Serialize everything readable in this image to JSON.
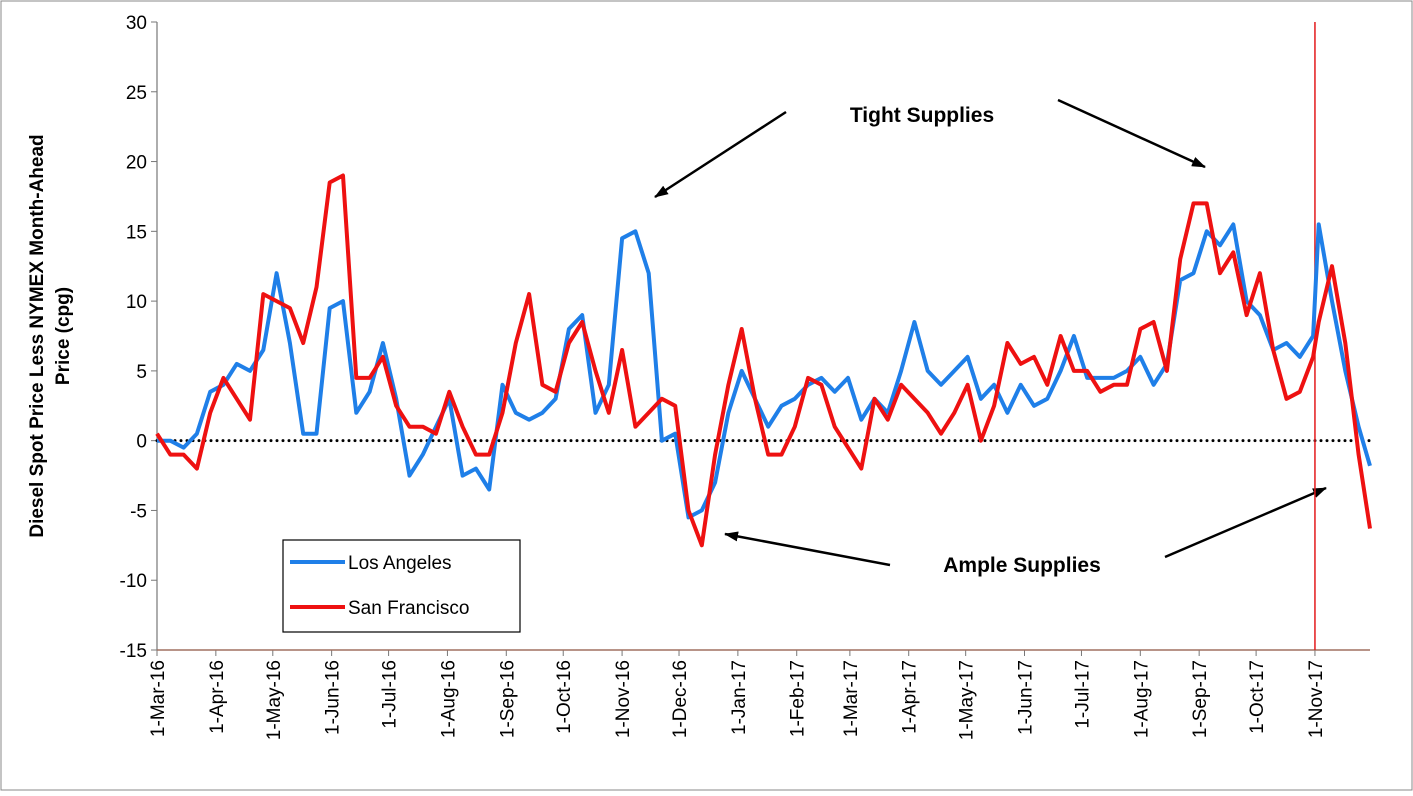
{
  "chart_data": {
    "type": "line",
    "ylabel": [
      "Diesel Spot Price Less NYMEX Month-Ahead",
      "Price (cpg)"
    ],
    "x": [
      "1-Mar-16",
      "8-Mar-16",
      "15-Mar-16",
      "22-Mar-16",
      "29-Mar-16",
      "5-Apr-16",
      "12-Apr-16",
      "19-Apr-16",
      "26-Apr-16",
      "3-May-16",
      "10-May-16",
      "17-May-16",
      "24-May-16",
      "31-May-16",
      "7-Jun-16",
      "14-Jun-16",
      "21-Jun-16",
      "28-Jun-16",
      "5-Jul-16",
      "12-Jul-16",
      "19-Jul-16",
      "26-Jul-16",
      "2-Aug-16",
      "9-Aug-16",
      "16-Aug-16",
      "23-Aug-16",
      "30-Aug-16",
      "6-Sep-16",
      "13-Sep-16",
      "20-Sep-16",
      "27-Sep-16",
      "4-Oct-16",
      "11-Oct-16",
      "18-Oct-16",
      "25-Oct-16",
      "1-Nov-16",
      "8-Nov-16",
      "15-Nov-16",
      "22-Nov-16",
      "29-Nov-16",
      "6-Dec-16",
      "13-Dec-16",
      "20-Dec-16",
      "27-Dec-16",
      "3-Jan-17",
      "10-Jan-17",
      "17-Jan-17",
      "24-Jan-17",
      "31-Jan-17",
      "7-Feb-17",
      "14-Feb-17",
      "21-Feb-17",
      "28-Feb-17",
      "7-Mar-17",
      "14-Mar-17",
      "21-Mar-17",
      "28-Mar-17",
      "4-Apr-17",
      "11-Apr-17",
      "18-Apr-17",
      "25-Apr-17",
      "2-May-17",
      "9-May-17",
      "16-May-17",
      "23-May-17",
      "30-May-17",
      "6-Jun-17",
      "13-Jun-17",
      "20-Jun-17",
      "27-Jun-17",
      "4-Jul-17",
      "11-Jul-17",
      "18-Jul-17",
      "25-Jul-17",
      "1-Aug-17",
      "8-Aug-17",
      "15-Aug-17",
      "22-Aug-17",
      "29-Aug-17",
      "5-Sep-17",
      "12-Sep-17",
      "19-Sep-17",
      "26-Sep-17",
      "3-Oct-17",
      "10-Oct-17",
      "17-Oct-17",
      "24-Oct-17",
      "31-Oct-17",
      "3-Nov-17",
      "10-Nov-17",
      "17-Nov-17",
      "24-Nov-17",
      "30-Nov-17"
    ],
    "series": [
      {
        "name": "Los Angeles",
        "color": "#1f7fe8",
        "values": [
          0,
          0,
          -0.5,
          0.5,
          3.5,
          4,
          5.5,
          5,
          6.5,
          12,
          7,
          0.5,
          0.5,
          9.5,
          10,
          2,
          3.5,
          7,
          3,
          -2.5,
          -1,
          1,
          3,
          -2.5,
          -2,
          -3.5,
          4,
          2,
          1.5,
          2,
          3,
          8,
          9,
          2,
          4,
          14.5,
          15,
          12,
          0,
          0.5,
          -5.5,
          -5,
          -3,
          2,
          5,
          3,
          1,
          2.5,
          3,
          4,
          4.5,
          3.5,
          4.5,
          1.5,
          3,
          2,
          5,
          8.5,
          5,
          4,
          5,
          6,
          3,
          4,
          2,
          4,
          2.5,
          3,
          5,
          7.5,
          4.5,
          4.5,
          4.5,
          5,
          6,
          4,
          5.5,
          11.5,
          12,
          15,
          14,
          15.5,
          10,
          9,
          6.5,
          7,
          6,
          7.5,
          15.5,
          10,
          5,
          1,
          -1.8
        ]
      },
      {
        "name": "San Francisco",
        "color": "#ee1111",
        "values": [
          0.5,
          -1,
          -1,
          -2,
          2,
          4.5,
          3,
          1.5,
          10.5,
          10,
          9.5,
          7,
          11,
          18.5,
          19,
          4.5,
          4.5,
          6,
          2.5,
          1,
          1,
          0.5,
          3.5,
          1,
          -1,
          -1,
          2,
          7,
          10.5,
          4,
          3.5,
          7,
          8.5,
          5,
          2,
          6.5,
          1,
          2,
          3,
          2.5,
          -5,
          -7.5,
          -1,
          4,
          8,
          3,
          -1,
          -1,
          1,
          4.5,
          4,
          1,
          -0.5,
          -2,
          3,
          1.5,
          4,
          3,
          2,
          0.5,
          2,
          4,
          0,
          2.5,
          7,
          5.5,
          6,
          4,
          7.5,
          5,
          5,
          3.5,
          4,
          4,
          8,
          8.5,
          5,
          13,
          17,
          17,
          12,
          13.5,
          9,
          12,
          6.5,
          3,
          3.5,
          6,
          8.5,
          12.5,
          7,
          -1,
          -6.3
        ]
      }
    ],
    "xlim": [
      "1-Mar-16",
      "30-Nov-17"
    ],
    "xticks": [
      "1-Mar-16",
      "1-Apr-16",
      "1-May-16",
      "1-Jun-16",
      "1-Jul-16",
      "1-Aug-16",
      "1-Sep-16",
      "1-Oct-16",
      "1-Nov-16",
      "1-Dec-16",
      "1-Jan-17",
      "1-Feb-17",
      "1-Mar-17",
      "1-Apr-17",
      "1-May-17",
      "1-Jun-17",
      "1-Jul-17",
      "1-Aug-17",
      "1-Sep-17",
      "1-Oct-17",
      "1-Nov-17"
    ],
    "ylim": [
      -15,
      30
    ],
    "yticks": [
      -15,
      -10,
      -5,
      0,
      5,
      10,
      15,
      20,
      25,
      30
    ],
    "reference_hline": 0,
    "reference_vline": "1-Nov-17",
    "reference_vline_color": "#e31a1c",
    "legend": "lower left",
    "annotations": [
      "Tight Supplies",
      "Ample Supplies"
    ]
  }
}
